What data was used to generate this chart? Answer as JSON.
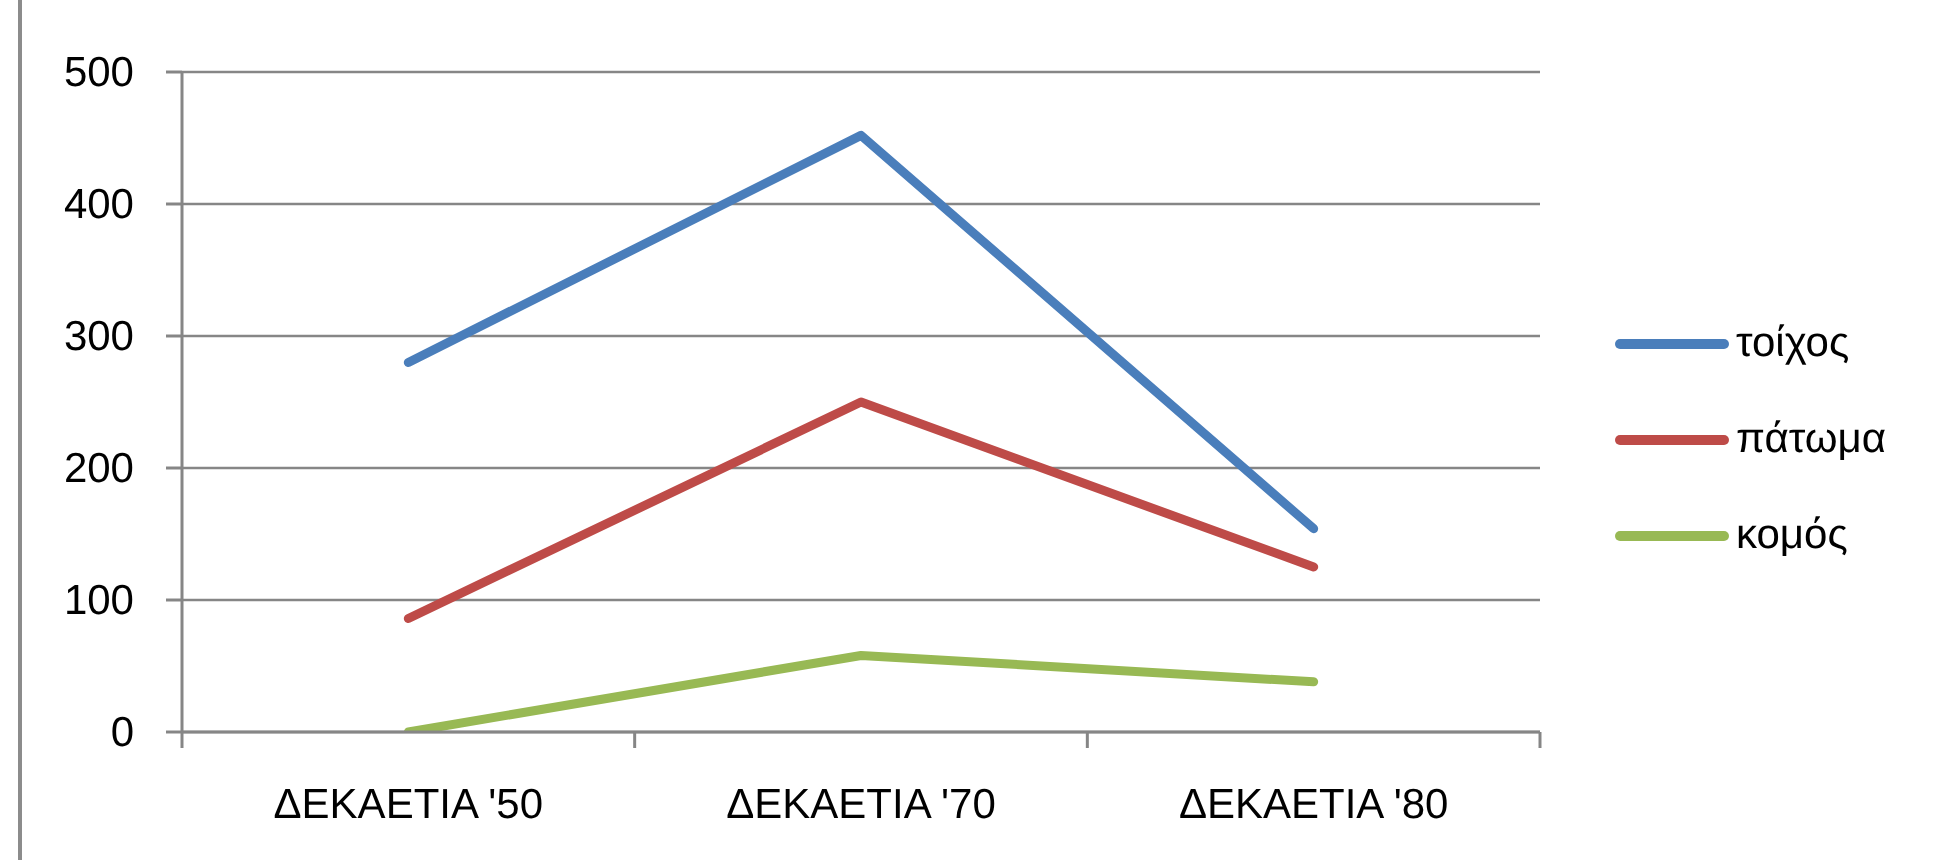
{
  "chart_data": {
    "type": "line",
    "categories": [
      "ΔΕΚΑΕΤΙΑ '50",
      "ΔΕΚΑΕΤΙΑ '70",
      "ΔΕΚΑΕΤΙΑ '80"
    ],
    "series": [
      {
        "name": "τοίχος",
        "color": "#4a7ebb",
        "values": [
          280,
          452,
          154
        ]
      },
      {
        "name": "πάτωμα",
        "color": "#be4b48",
        "values": [
          86,
          250,
          125
        ]
      },
      {
        "name": "κομός",
        "color": "#98b954",
        "values": [
          0,
          58,
          38
        ]
      }
    ],
    "ylim": [
      0,
      500
    ],
    "yticks": [
      0,
      100,
      200,
      300,
      400,
      500
    ],
    "grid": "y",
    "legend": "right",
    "marker": "none",
    "line_style": "solid"
  }
}
